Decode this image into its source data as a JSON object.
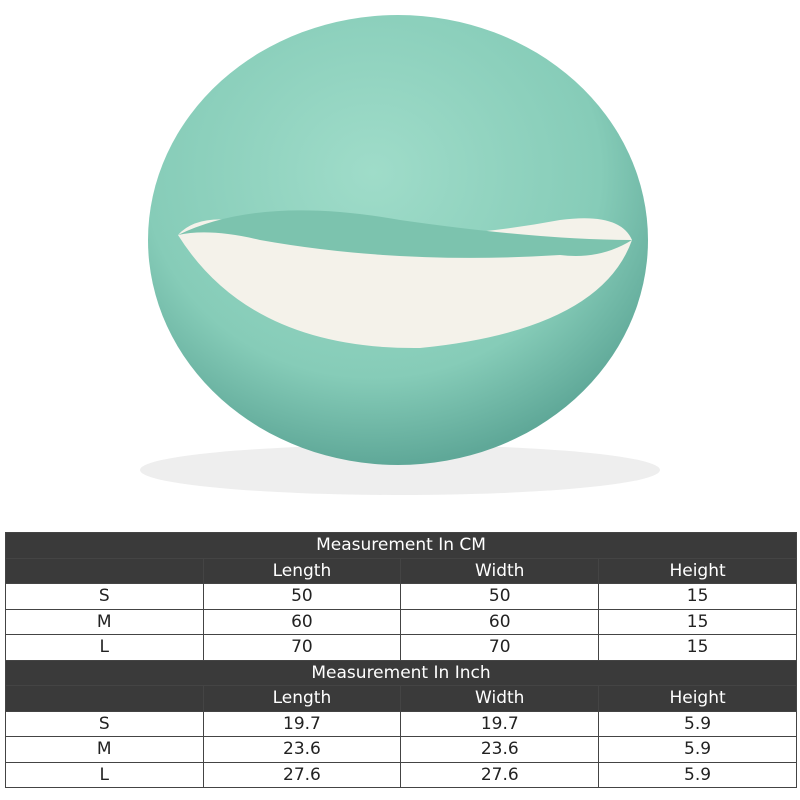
{
  "product_image": {
    "subject": "pet-bed-icon",
    "colors": {
      "cover": "#8ccfbc",
      "lining": "#f4f2ea",
      "shadow": "#5fa898"
    }
  },
  "tables": [
    {
      "title": "Measurement In CM",
      "headers": [
        "",
        "Length",
        "Width",
        "Height"
      ],
      "rows": [
        [
          "S",
          "50",
          "50",
          "15"
        ],
        [
          "M",
          "60",
          "60",
          "15"
        ],
        [
          "L",
          "70",
          "70",
          "15"
        ]
      ]
    },
    {
      "title": "Measurement In Inch",
      "headers": [
        "",
        "Length",
        "Width",
        "Height"
      ],
      "rows": [
        [
          "S",
          "19.7",
          "19.7",
          "5.9"
        ],
        [
          "M",
          "23.6",
          "23.6",
          "5.9"
        ],
        [
          "L",
          "27.6",
          "27.6",
          "5.9"
        ]
      ]
    }
  ],
  "colors": {
    "header_bg": "#3a3a3a",
    "header_text": "#ffffff"
  }
}
